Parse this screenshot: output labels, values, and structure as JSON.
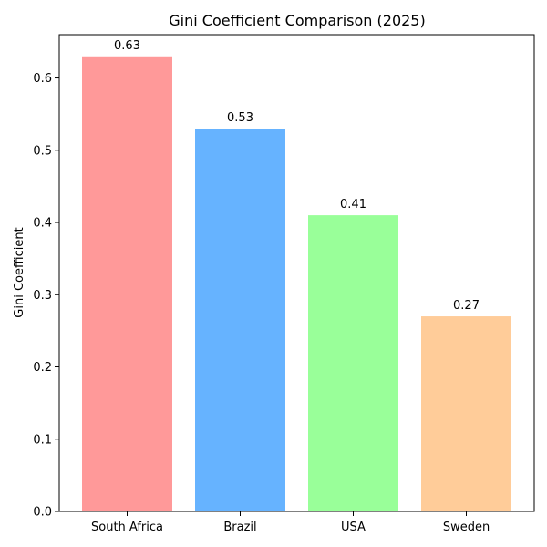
{
  "chart_data": {
    "type": "bar",
    "title": "Gini Coefficient Comparison (2025)",
    "xlabel": "",
    "ylabel": "Gini Coefficient",
    "categories": [
      "South Africa",
      "Brazil",
      "USA",
      "Sweden"
    ],
    "values": [
      0.63,
      0.53,
      0.41,
      0.27
    ],
    "data_labels": [
      "0.63",
      "0.53",
      "0.41",
      "0.27"
    ],
    "colors": [
      "#ff9999",
      "#66b3ff",
      "#99ff99",
      "#ffcc99"
    ],
    "ylim": [
      0,
      0.66
    ],
    "yticks": [
      0.0,
      0.1,
      0.2,
      0.3,
      0.4,
      0.5,
      0.6
    ],
    "ytick_labels": [
      "0.0",
      "0.1",
      "0.2",
      "0.3",
      "0.4",
      "0.5",
      "0.6"
    ],
    "grid": false,
    "legend": "none"
  }
}
